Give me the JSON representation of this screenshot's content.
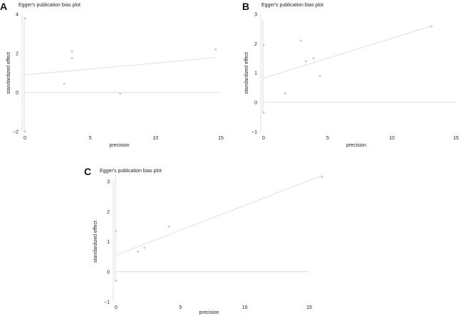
{
  "colors": {
    "background": "#ffffff",
    "axis": "#e0e0e0",
    "reference_line": "#dcdcdc",
    "regression_line": "#e4e4e4",
    "point": "#d0d0d0",
    "text": "#222222"
  },
  "chart_data": [
    {
      "panel": "A",
      "type": "scatter",
      "title": "Egger's publication bias plot",
      "xlabel": "precision",
      "ylabel": "standardized effect",
      "xlim": [
        0,
        15
      ],
      "ylim": [
        -2,
        4
      ],
      "xticks": [
        0,
        5,
        10,
        15
      ],
      "yticks": [
        -2,
        0,
        2,
        4
      ],
      "reference_y": 0,
      "ci_segment": {
        "x": 0,
        "y": [
          -2.0,
          3.8
        ]
      },
      "points": [
        {
          "x": 0,
          "y": 3.8
        },
        {
          "x": 0,
          "y": -2.0
        },
        {
          "x": 3.0,
          "y": 0.45
        },
        {
          "x": 3.6,
          "y": 2.1
        },
        {
          "x": 3.6,
          "y": 1.75
        },
        {
          "x": 7.3,
          "y": -0.05
        },
        {
          "x": 14.6,
          "y": 2.2
        }
      ],
      "regression": {
        "x": [
          0,
          14.6
        ],
        "y": [
          0.9,
          1.78
        ]
      }
    },
    {
      "panel": "B",
      "type": "scatter",
      "title": "Egger's publication bias plot",
      "xlabel": "precision",
      "ylabel": "standardized effect",
      "xlim": [
        0,
        15
      ],
      "ylim": [
        -1,
        3
      ],
      "xticks": [
        0,
        5,
        10,
        15
      ],
      "yticks": [
        -1,
        0,
        1,
        2,
        3
      ],
      "reference_y": 0,
      "ci_segment": {
        "x": 0,
        "y": [
          -0.4,
          2.8
        ]
      },
      "points": [
        {
          "x": 0,
          "y": 1.95
        },
        {
          "x": 0,
          "y": -0.35
        },
        {
          "x": 1.7,
          "y": 0.3
        },
        {
          "x": 2.9,
          "y": 2.1
        },
        {
          "x": 3.3,
          "y": 1.4
        },
        {
          "x": 3.9,
          "y": 1.5
        },
        {
          "x": 4.4,
          "y": 0.9
        },
        {
          "x": 13.1,
          "y": 2.58
        }
      ],
      "regression": {
        "x": [
          0,
          13.1
        ],
        "y": [
          0.82,
          2.6
        ]
      }
    },
    {
      "panel": "C",
      "type": "scatter",
      "title": "Egger's publication bias plot",
      "xlabel": "precision",
      "ylabel": "standardized effect",
      "xlim": [
        0,
        15
      ],
      "ylim": [
        -1,
        3
      ],
      "xticks": [
        0,
        5,
        10,
        15
      ],
      "yticks": [
        -1,
        0,
        1,
        2,
        3
      ],
      "reference_y": 0,
      "ci_segment": {
        "x": 0,
        "y": [
          -0.3,
          3.2
        ]
      },
      "points": [
        {
          "x": 0,
          "y": 1.35
        },
        {
          "x": 0,
          "y": -0.3
        },
        {
          "x": 1.7,
          "y": 0.67
        },
        {
          "x": 2.2,
          "y": 0.8
        },
        {
          "x": 4.1,
          "y": 1.5
        },
        {
          "x": 16.0,
          "y": 3.15
        }
      ],
      "regression": {
        "x": [
          0,
          16.0
        ],
        "y": [
          0.55,
          3.2
        ]
      }
    }
  ]
}
